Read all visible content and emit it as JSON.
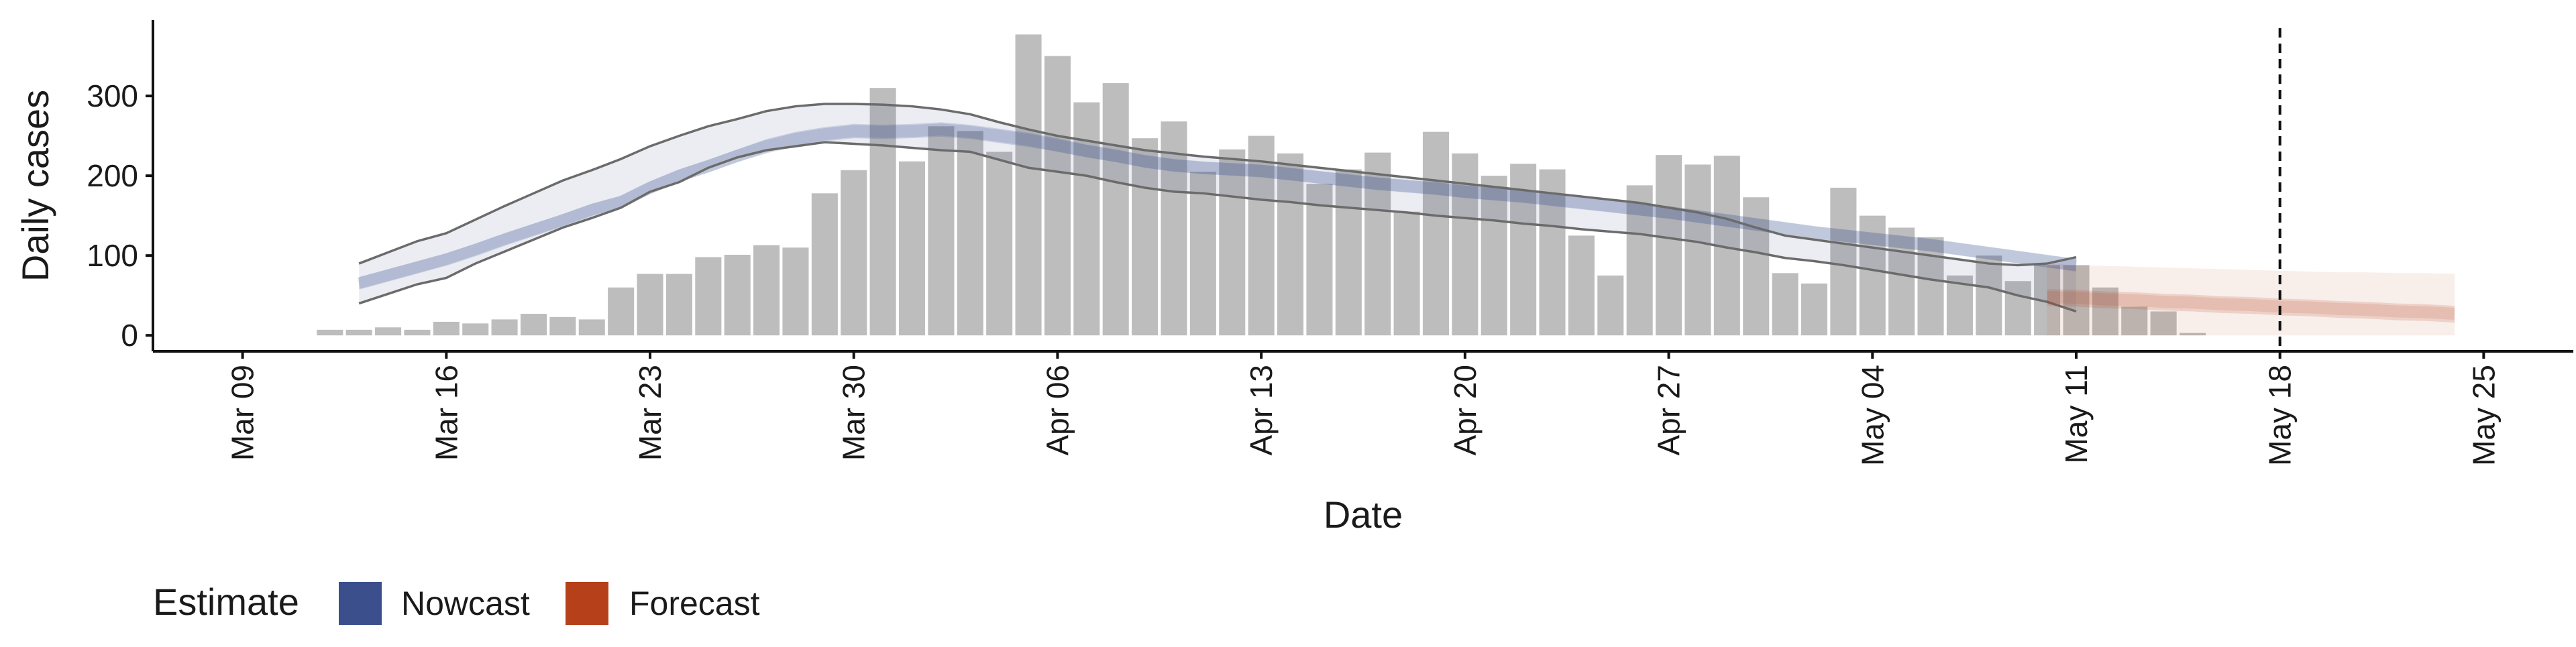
{
  "chart_data": {
    "type": "bar",
    "xlabel": "Date",
    "ylabel": "Daily cases",
    "ylim": [
      -20,
      395
    ],
    "yticks": [
      0,
      100,
      200,
      300
    ],
    "xlim": [
      "2020-03-09",
      "2020-05-25"
    ],
    "xtick_dates": [
      "2020-03-09",
      "2020-03-16",
      "2020-03-23",
      "2020-03-30",
      "2020-04-06",
      "2020-04-13",
      "2020-04-20",
      "2020-04-27",
      "2020-05-04",
      "2020-05-11",
      "2020-05-18",
      "2020-05-25"
    ],
    "xtick_labels": [
      "Mar 09",
      "Mar 16",
      "Mar 23",
      "Mar 30",
      "Apr 06",
      "Apr 13",
      "Apr 20",
      "Apr 27",
      "May 04",
      "May 11",
      "May 18",
      "May 25"
    ],
    "reference_line": {
      "date": "2020-05-18",
      "style": "dashed"
    },
    "grid": false,
    "legend": {
      "title": "Estimate",
      "position": "bottom-left",
      "items": [
        {
          "label": "Nowcast",
          "color": "#3a4f8c"
        },
        {
          "label": "Forecast",
          "color": "#b5401a"
        }
      ]
    },
    "colors": {
      "bars": "#bdbdbd",
      "nowcast": "#3a4f8c",
      "forecast": "#b5401a",
      "outer_bound_line": "#6b6b6b"
    },
    "observed": {
      "start_date": "2020-03-12",
      "values": [
        7,
        7,
        10,
        7,
        17,
        15,
        20,
        27,
        23,
        20,
        60,
        77,
        77,
        98,
        101,
        113,
        110,
        178,
        207,
        310,
        218,
        262,
        256,
        230,
        377,
        350,
        292,
        316,
        247,
        268,
        205,
        233,
        250,
        228,
        190,
        208,
        229,
        155,
        255,
        228,
        200,
        215,
        208,
        125,
        75,
        188,
        226,
        214,
        225,
        173,
        78,
        65,
        185,
        150,
        135,
        123,
        75,
        100,
        68,
        88,
        88,
        60,
        36,
        30,
        3
      ]
    },
    "nowcast": {
      "start_date": "2020-03-13",
      "median": [
        65,
        75,
        85,
        95,
        107,
        120,
        132,
        144,
        157,
        167,
        185,
        200,
        212,
        225,
        237,
        246,
        252,
        256,
        255,
        256,
        258,
        255,
        250,
        245,
        238,
        231,
        225,
        218,
        213,
        210,
        208,
        206,
        202,
        198,
        194,
        190,
        187,
        184,
        180,
        177,
        174,
        170,
        166,
        162,
        158,
        154,
        149,
        144,
        139,
        134,
        129,
        125,
        121,
        117,
        113,
        108,
        103,
        98,
        93,
        88
      ],
      "inner_lower": [
        58,
        68,
        78,
        88,
        100,
        113,
        125,
        137,
        150,
        160,
        177,
        192,
        204,
        217,
        228,
        237,
        243,
        247,
        246,
        247,
        249,
        246,
        241,
        236,
        230,
        223,
        217,
        210,
        205,
        202,
        200,
        198,
        194,
        190,
        186,
        182,
        179,
        176,
        172,
        169,
        166,
        162,
        158,
        154,
        150,
        146,
        141,
        136,
        131,
        126,
        121,
        117,
        113,
        109,
        105,
        100,
        95,
        90,
        85,
        80
      ],
      "inner_upper": [
        73,
        83,
        93,
        103,
        115,
        128,
        140,
        152,
        165,
        175,
        193,
        208,
        220,
        233,
        246,
        255,
        261,
        265,
        264,
        265,
        267,
        264,
        259,
        254,
        247,
        239,
        233,
        226,
        221,
        218,
        216,
        214,
        210,
        206,
        202,
        198,
        195,
        192,
        188,
        185,
        182,
        178,
        174,
        170,
        166,
        162,
        157,
        152,
        147,
        142,
        137,
        133,
        129,
        125,
        121,
        116,
        111,
        106,
        101,
        96
      ],
      "outer_lower": [
        40,
        52,
        64,
        72,
        90,
        105,
        120,
        135,
        147,
        160,
        180,
        192,
        210,
        223,
        232,
        237,
        242,
        240,
        238,
        235,
        232,
        230,
        220,
        210,
        205,
        200,
        192,
        185,
        180,
        178,
        174,
        170,
        167,
        163,
        160,
        157,
        154,
        150,
        147,
        144,
        140,
        137,
        133,
        130,
        127,
        122,
        117,
        110,
        104,
        97,
        93,
        88,
        82,
        76,
        70,
        65,
        60,
        50,
        42,
        30
      ],
      "outer_upper": [
        90,
        104,
        118,
        128,
        145,
        162,
        178,
        194,
        207,
        221,
        237,
        250,
        262,
        271,
        281,
        287,
        290,
        290,
        289,
        287,
        283,
        277,
        267,
        258,
        250,
        244,
        238,
        232,
        228,
        224,
        221,
        218,
        214,
        210,
        206,
        202,
        198,
        194,
        190,
        186,
        182,
        178,
        174,
        170,
        166,
        160,
        154,
        146,
        135,
        125,
        120,
        115,
        110,
        105,
        100,
        95,
        90,
        88,
        90,
        98
      ]
    },
    "forecast": {
      "start_date": "2020-05-10",
      "median": [
        48,
        47,
        45,
        44,
        42,
        41,
        39,
        38,
        36,
        35,
        33,
        32,
        30,
        29,
        27
      ],
      "inner_lower": [
        37,
        36,
        34,
        33,
        31,
        30,
        28,
        27,
        25,
        24,
        22,
        21,
        19,
        18,
        16
      ],
      "inner_upper": [
        58,
        57,
        55,
        54,
        52,
        51,
        49,
        48,
        46,
        45,
        43,
        42,
        40,
        39,
        37
      ],
      "outer_lower": [
        0,
        0,
        0,
        0,
        0,
        0,
        0,
        0,
        0,
        0,
        0,
        0,
        0,
        0,
        0
      ],
      "outer_upper": [
        90,
        88,
        87,
        86,
        85,
        84,
        83,
        82,
        81,
        80,
        79,
        79,
        78,
        78,
        77
      ]
    }
  }
}
